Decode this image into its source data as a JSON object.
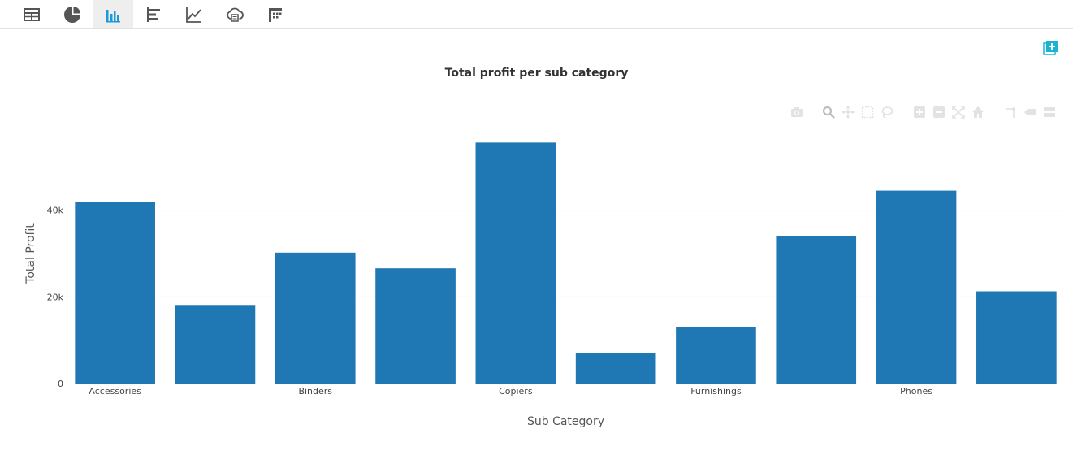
{
  "tabs": [
    {
      "name": "table-icon",
      "active": false
    },
    {
      "name": "pie-chart-icon",
      "active": false
    },
    {
      "name": "bar-chart-icon",
      "active": true
    },
    {
      "name": "horizontal-bar-icon",
      "active": false
    },
    {
      "name": "line-chart-icon",
      "active": false
    },
    {
      "name": "cloud-export-icon",
      "active": false
    },
    {
      "name": "pivot-icon",
      "active": false
    }
  ],
  "colors": {
    "bar": "#1f77b4",
    "accent": "#17b5d3",
    "grid": "#ebebeb",
    "axis": "#444444"
  },
  "chart_data": {
    "type": "bar",
    "title": "Total profit per sub category",
    "xlabel": "Sub Category",
    "ylabel": "Total Profit",
    "categories": [
      "Accessories",
      "",
      "Binders",
      "",
      "Copiers",
      "",
      "Furnishings",
      "",
      "Phones",
      ""
    ],
    "values": [
      41937,
      18138,
      30222,
      26591,
      55618,
      6964,
      13059,
      34053,
      44516,
      21278
    ],
    "ylim": [
      0,
      60000
    ],
    "yticks": [
      0,
      20000,
      40000
    ],
    "ytick_labels": [
      "0",
      "20k",
      "40k"
    ],
    "grid": true,
    "legend": "none"
  }
}
